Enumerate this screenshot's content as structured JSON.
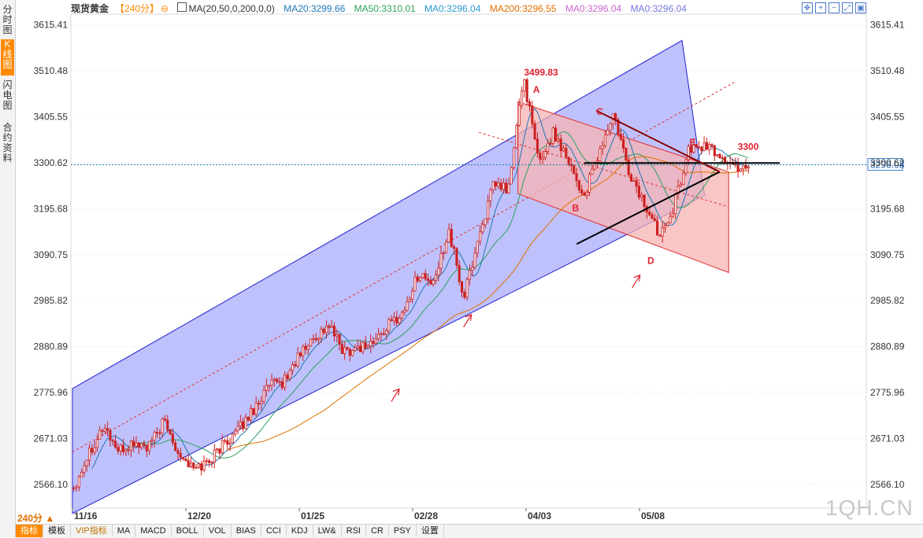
{
  "left_tabs": [
    {
      "label": "分时图",
      "active": false
    },
    {
      "label": "K线图",
      "active": true
    },
    {
      "label": "闪电图",
      "active": false
    },
    {
      "label": "合约资料",
      "active": false
    }
  ],
  "header": {
    "instrument": "现货黄金",
    "period": "【240分】",
    "ma_label": "MA(20,50,0,200,0,0)",
    "ma20": "MA20:3299.66",
    "ma50": "MA50:3310.01",
    "ma0a": "MA0:3296.04",
    "ma200": "MA200:3296.55",
    "ma0b": "MA0:3296.04",
    "ma0c": "MA0:3296.04"
  },
  "colors": {
    "ma20": "#1f78b4",
    "ma50": "#2ca25f",
    "ma200": "#e07000",
    "ma0": "#cc66cc",
    "channel_blue": "#b4b6fb",
    "channel_red": "#f7b3b3",
    "candle": "#cc2020",
    "accent": "#ff8a00"
  },
  "chart_data": {
    "type": "candlestick",
    "y_ticks": [
      "3615.41",
      "3510.48",
      "3405.55",
      "3300.62",
      "3195.68",
      "3090.75",
      "2985.82",
      "2880.89",
      "2775.96",
      "2671.03",
      "2566.10"
    ],
    "ylim": [
      2512,
      3640
    ],
    "x_ticks": [
      "11/16",
      "12/20",
      "01/25",
      "02/28",
      "04/03",
      "05/08"
    ],
    "current_price": "3296.08",
    "price_path": [
      2560,
      2640,
      2700,
      2640,
      2660,
      2650,
      2710,
      2640,
      2600,
      2620,
      2660,
      2690,
      2740,
      2790,
      2800,
      2860,
      2900,
      2930,
      2870,
      2880,
      2890,
      2930,
      2960,
      3050,
      3020,
      3150,
      2990,
      3130,
      3250,
      3240,
      3499.83,
      3300,
      3370,
      3310,
      3220,
      3320,
      3410,
      3280,
      3210,
      3140,
      3200,
      3330,
      3340,
      3320,
      3290,
      3296
    ],
    "annotations": [
      {
        "label": "3499.83",
        "point": [
          30,
          3499.83
        ]
      },
      {
        "label": "A",
        "point": [
          30.6,
          3460
        ]
      },
      {
        "label": "B",
        "point": [
          33.2,
          3190
        ]
      },
      {
        "label": "C",
        "point": [
          34.8,
          3410
        ]
      },
      {
        "label": "D",
        "point": [
          38.2,
          3070
        ]
      },
      {
        "label": "E",
        "point": [
          41.0,
          3340
        ]
      },
      {
        "label": "3300",
        "point": [
          44.2,
          3330
        ]
      }
    ],
    "support_arrows": [
      [
        21.5,
        2820
      ],
      [
        26.3,
        2990
      ],
      [
        37.5,
        3080
      ]
    ],
    "blue_channel": {
      "upper": [
        [
          0,
          2785
        ],
        [
          40.5,
          3580
        ]
      ],
      "lower": [
        [
          0,
          2500
        ],
        [
          42,
          3226
        ]
      ]
    },
    "blue_mid": [
      [
        0,
        2640
      ],
      [
        44,
        3485
      ]
    ],
    "red_channel": {
      "upper": [
        [
          29.6,
          3440
        ],
        [
          43.6,
          3280
        ]
      ],
      "lower": [
        [
          29.6,
          3230
        ],
        [
          43.6,
          3050
        ]
      ]
    },
    "red_mid": [
      [
        27,
        3370
      ],
      [
        43.6,
        3200
      ]
    ],
    "black_lines": [
      [
        [
          34,
          3300
        ],
        [
          47,
          3300
        ]
      ],
      [
        [
          33.5,
          3115
        ],
        [
          43,
          3280
        ]
      ],
      [
        [
          34.8,
          3420
        ],
        [
          43,
          3280
        ]
      ]
    ]
  },
  "bottom_tabs": [
    "指标",
    "模板",
    "VIP指标",
    "MA",
    "MACD",
    "BOLL",
    "VOL",
    "BIAS",
    "CCI",
    "KDJ",
    "LW&",
    "RSI",
    "CR",
    "PSY",
    "设置"
  ],
  "period_badge": "240分 ▲",
  "watermark": "1QH.CN"
}
